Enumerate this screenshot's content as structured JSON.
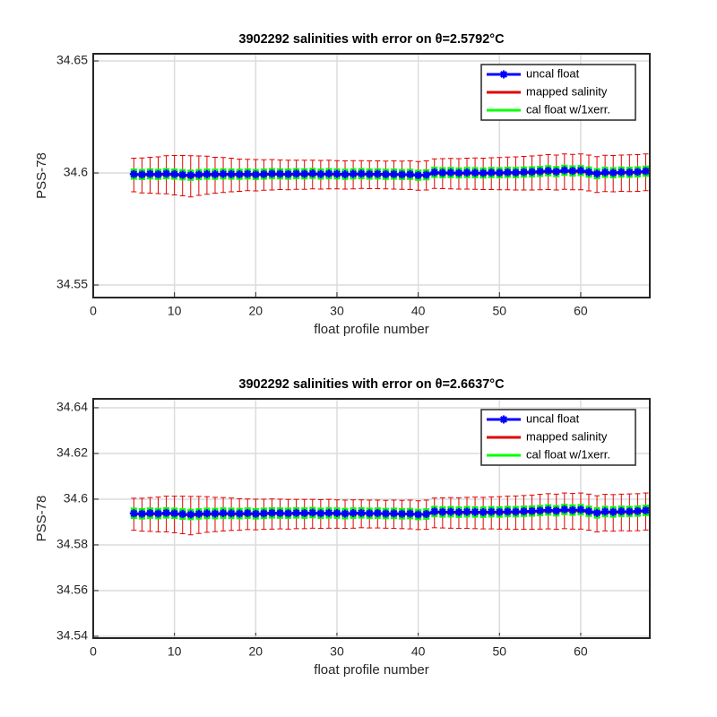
{
  "chart_data": [
    {
      "type": "line",
      "title": "3902292 salinities with error on θ=2.5792°C",
      "xlabel": "float profile number",
      "ylabel": "PSS-78",
      "x": [
        5,
        6,
        7,
        8,
        9,
        10,
        11,
        12,
        13,
        14,
        15,
        16,
        17,
        18,
        19,
        20,
        21,
        22,
        23,
        24,
        25,
        26,
        27,
        28,
        29,
        30,
        31,
        32,
        33,
        34,
        35,
        36,
        37,
        38,
        39,
        40,
        41,
        42,
        43,
        44,
        45,
        46,
        47,
        48,
        49,
        50,
        51,
        52,
        53,
        54,
        55,
        56,
        57,
        58,
        59,
        60,
        61,
        62,
        63,
        64,
        65,
        66,
        67,
        68
      ],
      "xlim": [
        0,
        68.5
      ],
      "xticks": [
        0,
        10,
        20,
        30,
        40,
        50,
        60
      ],
      "ylim": [
        34.5444,
        34.6532
      ],
      "yticks": [
        34.55,
        34.6,
        34.65
      ],
      "grid": true,
      "legend": "upper right",
      "series": [
        {
          "name": "uncal float",
          "color": "#0000ff",
          "values": [
            34.5995,
            34.5993,
            34.5996,
            34.5994,
            34.5997,
            34.5995,
            34.5992,
            34.599,
            34.5993,
            34.5995,
            34.5994,
            34.5996,
            34.5995,
            34.5994,
            34.5996,
            34.5993,
            34.5995,
            34.5997,
            34.5996,
            34.5995,
            34.5997,
            34.5996,
            34.5998,
            34.5995,
            34.5997,
            34.5996,
            34.5994,
            34.5996,
            34.5997,
            34.5995,
            34.5996,
            34.5994,
            34.5995,
            34.5993,
            34.5994,
            34.599,
            34.5992,
            34.6003,
            34.6001,
            34.6002,
            34.6,
            34.6002,
            34.6001,
            34.6,
            34.6002,
            34.6001,
            34.6003,
            34.6002,
            34.6004,
            34.6005,
            34.6007,
            34.601,
            34.6006,
            34.6012,
            34.6009,
            34.6011,
            34.6004,
            34.5997,
            34.6003,
            34.6001,
            34.6004,
            34.6003,
            34.6005,
            34.6008
          ]
        },
        {
          "name": "mapped salinity",
          "color": "#e00000",
          "values": [
            34.5991,
            34.5989,
            34.599,
            34.599,
            34.5992,
            34.599,
            34.5988,
            34.5985,
            34.5988,
            34.599,
            34.599,
            34.5991,
            34.5991,
            34.599,
            34.5991,
            34.599,
            34.5991,
            34.5992,
            34.5992,
            34.5991,
            34.5992,
            34.5992,
            34.5993,
            34.5992,
            34.5993,
            34.5992,
            34.5991,
            34.5992,
            34.5993,
            34.5992,
            34.5992,
            34.5991,
            34.5991,
            34.599,
            34.599,
            34.5987,
            34.5989,
            34.5997,
            34.5997,
            34.5997,
            34.5996,
            34.5997,
            34.5997,
            34.5996,
            34.5997,
            34.5997,
            34.5998,
            34.5998,
            34.5999,
            34.6,
            34.6002,
            34.6004,
            34.6002,
            34.6006,
            34.6004,
            34.6005,
            34.6,
            34.5993,
            34.5998,
            34.5997,
            34.5999,
            34.5999,
            34.6,
            34.6003
          ],
          "errors": [
            0.0075,
            0.0078,
            0.008,
            0.0082,
            0.0085,
            0.0088,
            0.009,
            0.0092,
            0.0088,
            0.0085,
            0.008,
            0.0078,
            0.0075,
            0.0072,
            0.007,
            0.007,
            0.0068,
            0.0068,
            0.0066,
            0.0066,
            0.0065,
            0.0065,
            0.0064,
            0.0064,
            0.0064,
            0.0063,
            0.0063,
            0.0063,
            0.0062,
            0.0062,
            0.0062,
            0.0062,
            0.0063,
            0.0063,
            0.0064,
            0.0064,
            0.0065,
            0.0066,
            0.0067,
            0.0068,
            0.0068,
            0.0069,
            0.007,
            0.007,
            0.0071,
            0.0072,
            0.0073,
            0.0074,
            0.0075,
            0.0076,
            0.0077,
            0.0078,
            0.0078,
            0.0079,
            0.0079,
            0.008,
            0.008,
            0.008,
            0.0081,
            0.0081,
            0.0081,
            0.0082,
            0.0082,
            0.0082
          ]
        },
        {
          "name": "cal float w/1xerr.",
          "color": "#00ff00",
          "error": 0.0025,
          "values": [
            34.5995,
            34.5993,
            34.5996,
            34.5994,
            34.5997,
            34.5995,
            34.5992,
            34.599,
            34.5993,
            34.5995,
            34.5994,
            34.5996,
            34.5995,
            34.5994,
            34.5996,
            34.5993,
            34.5995,
            34.5997,
            34.5996,
            34.5995,
            34.5997,
            34.5996,
            34.5998,
            34.5995,
            34.5997,
            34.5996,
            34.5994,
            34.5996,
            34.5997,
            34.5995,
            34.5996,
            34.5994,
            34.5995,
            34.5993,
            34.5994,
            34.599,
            34.5992,
            34.6003,
            34.6001,
            34.6002,
            34.6,
            34.6002,
            34.6001,
            34.6,
            34.6002,
            34.6001,
            34.6003,
            34.6002,
            34.6004,
            34.6005,
            34.6007,
            34.601,
            34.6006,
            34.6012,
            34.6009,
            34.6011,
            34.6004,
            34.5997,
            34.6003,
            34.6001,
            34.6004,
            34.6003,
            34.6005,
            34.6008
          ]
        }
      ]
    },
    {
      "type": "line",
      "title": "3902292 salinities with error on θ=2.6637°C",
      "xlabel": "float profile number",
      "ylabel": "PSS-78",
      "x": [
        5,
        6,
        7,
        8,
        9,
        10,
        11,
        12,
        13,
        14,
        15,
        16,
        17,
        18,
        19,
        20,
        21,
        22,
        23,
        24,
        25,
        26,
        27,
        28,
        29,
        30,
        31,
        32,
        33,
        34,
        35,
        36,
        37,
        38,
        39,
        40,
        41,
        42,
        43,
        44,
        45,
        46,
        47,
        48,
        49,
        50,
        51,
        52,
        53,
        54,
        55,
        56,
        57,
        58,
        59,
        60,
        61,
        62,
        63,
        64,
        65,
        66,
        67,
        68
      ],
      "xlim": [
        0,
        68.5
      ],
      "xticks": [
        0,
        10,
        20,
        30,
        40,
        50,
        60
      ],
      "ylim": [
        34.5392,
        34.6439
      ],
      "yticks": [
        34.54,
        34.56,
        34.58,
        34.6,
        34.62,
        34.64
      ],
      "grid": true,
      "legend": "upper right",
      "series": [
        {
          "name": "uncal float",
          "color": "#0000ff",
          "values": [
            34.5938,
            34.5936,
            34.5939,
            34.5937,
            34.594,
            34.5938,
            34.5935,
            34.5933,
            34.5936,
            34.5938,
            34.5937,
            34.5939,
            34.5938,
            34.5937,
            34.5939,
            34.5936,
            34.5938,
            34.594,
            34.5939,
            34.5938,
            34.594,
            34.5939,
            34.5941,
            34.5938,
            34.594,
            34.5939,
            34.5937,
            34.5939,
            34.594,
            34.5938,
            34.5939,
            34.5937,
            34.5938,
            34.5936,
            34.5937,
            34.5933,
            34.5935,
            34.5946,
            34.5944,
            34.5945,
            34.5943,
            34.5945,
            34.5944,
            34.5943,
            34.5945,
            34.5944,
            34.5946,
            34.5945,
            34.5947,
            34.5948,
            34.595,
            34.5953,
            34.5949,
            34.5955,
            34.5952,
            34.5954,
            34.5947,
            34.594,
            34.5946,
            34.5944,
            34.5947,
            34.5946,
            34.5948,
            34.5951
          ]
        },
        {
          "name": "mapped salinity",
          "color": "#e00000",
          "values": [
            34.5934,
            34.5932,
            34.5933,
            34.5933,
            34.5935,
            34.5933,
            34.5931,
            34.5928,
            34.5931,
            34.5933,
            34.5933,
            34.5934,
            34.5934,
            34.5933,
            34.5934,
            34.5933,
            34.5934,
            34.5935,
            34.5935,
            34.5934,
            34.5935,
            34.5935,
            34.5936,
            34.5935,
            34.5936,
            34.5935,
            34.5934,
            34.5935,
            34.5936,
            34.5935,
            34.5935,
            34.5934,
            34.5934,
            34.5933,
            34.5933,
            34.593,
            34.5932,
            34.594,
            34.594,
            34.594,
            34.5939,
            34.594,
            34.594,
            34.5939,
            34.594,
            34.594,
            34.5941,
            34.5941,
            34.5942,
            34.5943,
            34.5945,
            34.5947,
            34.5945,
            34.5949,
            34.5947,
            34.5948,
            34.5943,
            34.5936,
            34.5941,
            34.594,
            34.5942,
            34.5942,
            34.5943,
            34.5946
          ],
          "errors": [
            0.007,
            0.0072,
            0.0074,
            0.0076,
            0.0078,
            0.008,
            0.0082,
            0.0084,
            0.0081,
            0.0078,
            0.0075,
            0.0073,
            0.0071,
            0.0069,
            0.0067,
            0.0067,
            0.0066,
            0.0066,
            0.0065,
            0.0065,
            0.0064,
            0.0064,
            0.0063,
            0.0063,
            0.0063,
            0.0062,
            0.0062,
            0.0062,
            0.0061,
            0.0061,
            0.0061,
            0.0061,
            0.0062,
            0.0062,
            0.0063,
            0.0063,
            0.0064,
            0.0065,
            0.0066,
            0.0067,
            0.0067,
            0.0068,
            0.0069,
            0.0069,
            0.007,
            0.0071,
            0.0072,
            0.0073,
            0.0074,
            0.0075,
            0.0076,
            0.0077,
            0.0077,
            0.0078,
            0.0078,
            0.0079,
            0.0079,
            0.0079,
            0.008,
            0.008,
            0.008,
            0.0081,
            0.0081,
            0.0081
          ]
        },
        {
          "name": "cal float w/1xerr.",
          "color": "#00ff00",
          "error": 0.0025,
          "values": [
            34.5938,
            34.5936,
            34.5939,
            34.5937,
            34.594,
            34.5938,
            34.5935,
            34.5933,
            34.5936,
            34.5938,
            34.5937,
            34.5939,
            34.5938,
            34.5937,
            34.5939,
            34.5936,
            34.5938,
            34.594,
            34.5939,
            34.5938,
            34.594,
            34.5939,
            34.5941,
            34.5938,
            34.594,
            34.5939,
            34.5937,
            34.5939,
            34.594,
            34.5938,
            34.5939,
            34.5937,
            34.5938,
            34.5936,
            34.5937,
            34.5933,
            34.5935,
            34.5946,
            34.5944,
            34.5945,
            34.5943,
            34.5945,
            34.5944,
            34.5943,
            34.5945,
            34.5944,
            34.5946,
            34.5945,
            34.5947,
            34.5948,
            34.595,
            34.5953,
            34.5949,
            34.5955,
            34.5952,
            34.5954,
            34.5947,
            34.594,
            34.5946,
            34.5944,
            34.5947,
            34.5946,
            34.5948,
            34.5951
          ]
        }
      ]
    }
  ]
}
